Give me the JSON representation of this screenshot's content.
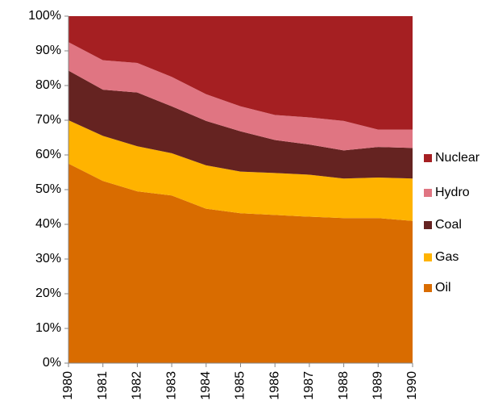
{
  "chart_data": {
    "type": "stacked_area",
    "categories": [
      "1980",
      "1981",
      "1982",
      "1983",
      "1984",
      "1985",
      "1986",
      "1987",
      "1988",
      "1989",
      "1990"
    ],
    "series": [
      {
        "name": "Oil",
        "color": "#d96c00",
        "values": [
          57.5,
          52.5,
          49.5,
          48.3,
          44.5,
          43.2,
          42.7,
          42.2,
          41.8,
          41.8,
          41
        ]
      },
      {
        "name": "Gas",
        "color": "#ffb300",
        "values": [
          12.5,
          13,
          13,
          12.2,
          12.5,
          12,
          12.1,
          12.1,
          11.4,
          11.7,
          12.2
        ]
      },
      {
        "name": "Coal",
        "color": "#652321",
        "values": [
          14.3,
          13.3,
          15.5,
          13.5,
          12.8,
          11.6,
          9.5,
          8.7,
          8.1,
          8.8,
          8.8
        ]
      },
      {
        "name": "Hydro",
        "color": "#e07582",
        "values": [
          8.2,
          8.5,
          8.5,
          8.5,
          7.7,
          7.2,
          7.2,
          7.8,
          8.5,
          5,
          5.3
        ]
      },
      {
        "name": "Nuclear",
        "color": "#a51f22",
        "values": [
          7.5,
          12.7,
          13.5,
          17.5,
          22.5,
          26,
          28.5,
          29.2,
          30.2,
          32.7,
          32.7
        ]
      }
    ],
    "ylim": [
      0,
      100
    ],
    "yticks": [
      {
        "value": 0,
        "label": "0%"
      },
      {
        "value": 10,
        "label": "10%"
      },
      {
        "value": 20,
        "label": "20%"
      },
      {
        "value": 30,
        "label": "30%"
      },
      {
        "value": 40,
        "label": "40%"
      },
      {
        "value": 50,
        "label": "50%"
      },
      {
        "value": 60,
        "label": "60%"
      },
      {
        "value": 70,
        "label": "70%"
      },
      {
        "value": 80,
        "label": "80%"
      },
      {
        "value": 90,
        "label": "90%"
      },
      {
        "value": 100,
        "label": "100%"
      }
    ],
    "legend": "right"
  }
}
